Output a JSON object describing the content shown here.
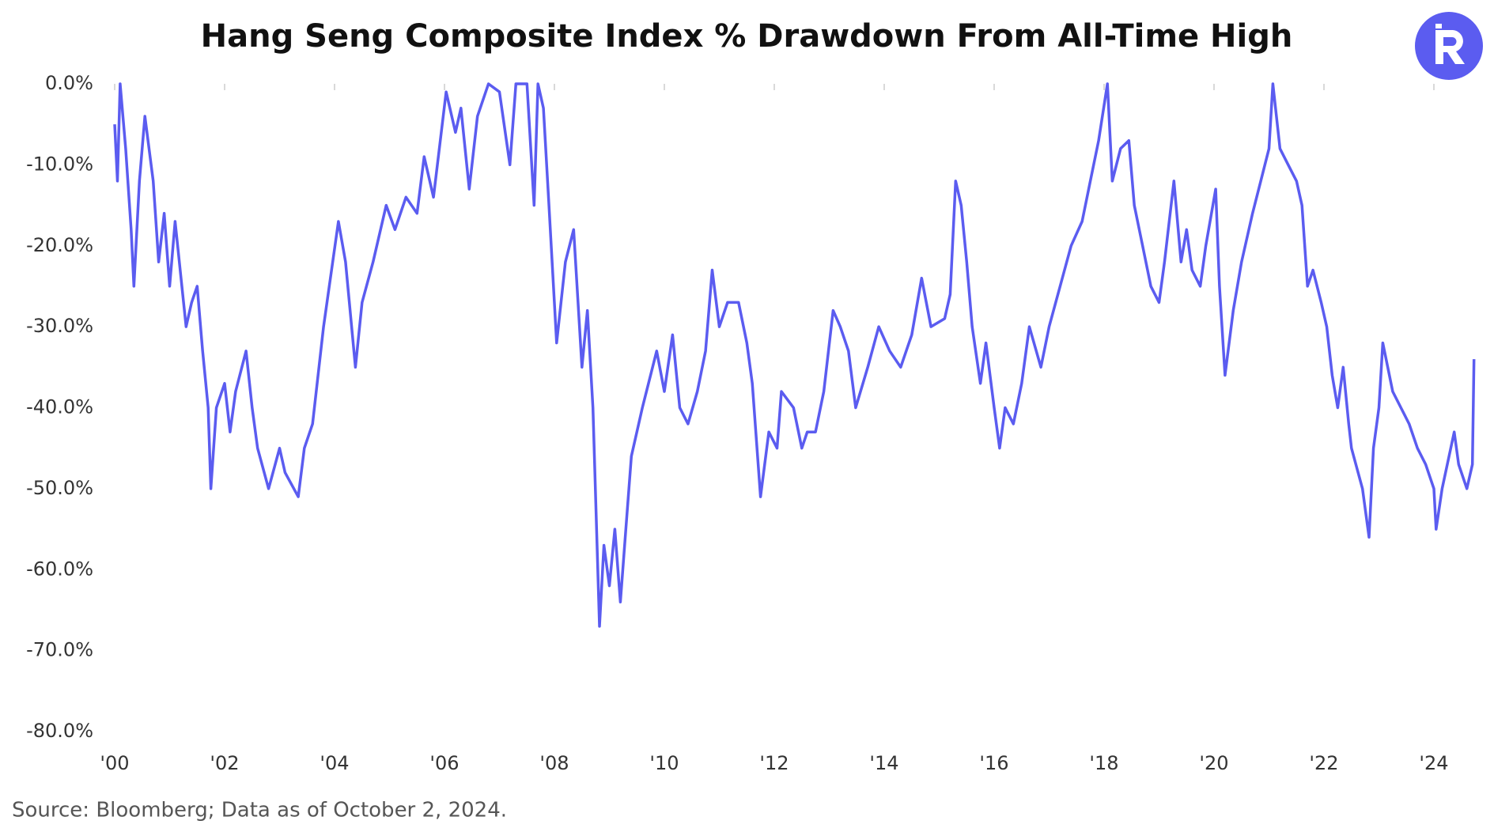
{
  "chart_data": {
    "type": "line",
    "title": "Hang Seng Composite Index % Drawdown From All-Time High",
    "source": "Source: Bloomberg; Data as of October 2, 2024.",
    "color": "#5b5cf0",
    "xlim": [
      2000,
      2024.8
    ],
    "ylim": [
      -80,
      0
    ],
    "xticks": [
      {
        "value": 2000,
        "label": "'00"
      },
      {
        "value": 2002,
        "label": "'02"
      },
      {
        "value": 2004,
        "label": "'04"
      },
      {
        "value": 2006,
        "label": "'06"
      },
      {
        "value": 2008,
        "label": "'08"
      },
      {
        "value": 2010,
        "label": "'10"
      },
      {
        "value": 2012,
        "label": "'12"
      },
      {
        "value": 2014,
        "label": "'14"
      },
      {
        "value": 2016,
        "label": "'16"
      },
      {
        "value": 2018,
        "label": "'18"
      },
      {
        "value": 2020,
        "label": "'20"
      },
      {
        "value": 2022,
        "label": "'22"
      },
      {
        "value": 2024,
        "label": "'24"
      }
    ],
    "yticks": [
      {
        "value": 0,
        "label": "0.0%"
      },
      {
        "value": -10,
        "label": "-10.0%"
      },
      {
        "value": -20,
        "label": "-20.0%"
      },
      {
        "value": -30,
        "label": "-30.0%"
      },
      {
        "value": -40,
        "label": "-40.0%"
      },
      {
        "value": -50,
        "label": "-50.0%"
      },
      {
        "value": -60,
        "label": "-60.0%"
      },
      {
        "value": -70,
        "label": "-70.0%"
      },
      {
        "value": -80,
        "label": "-80.0%"
      }
    ],
    "x": [
      2000.0,
      2000.05,
      2000.1,
      2000.2,
      2000.3,
      2000.35,
      2000.45,
      2000.55,
      2000.7,
      2000.8,
      2000.9,
      2001.0,
      2001.1,
      2001.3,
      2001.4,
      2001.5,
      2001.6,
      2001.7,
      2001.75,
      2001.85,
      2002.0,
      2002.1,
      2002.2,
      2002.39,
      2002.5,
      2002.6,
      2002.8,
      2003.0,
      2003.1,
      2003.34,
      2003.45,
      2003.6,
      2003.8,
      2004.07,
      2004.2,
      2004.38,
      2004.5,
      2004.7,
      2004.94,
      2005.1,
      2005.3,
      2005.5,
      2005.63,
      2005.8,
      2006.03,
      2006.2,
      2006.3,
      2006.45,
      2006.6,
      2006.8,
      2007.0,
      2007.19,
      2007.3,
      2007.5,
      2007.63,
      2007.7,
      2007.8,
      2007.9,
      2008.04,
      2008.2,
      2008.35,
      2008.5,
      2008.6,
      2008.7,
      2008.82,
      2008.9,
      2009.0,
      2009.1,
      2009.2,
      2009.3,
      2009.4,
      2009.6,
      2009.86,
      2010.0,
      2010.15,
      2010.28,
      2010.43,
      2010.6,
      2010.75,
      2010.87,
      2011.0,
      2011.15,
      2011.35,
      2011.5,
      2011.6,
      2011.75,
      2011.9,
      2012.05,
      2012.13,
      2012.35,
      2012.5,
      2012.6,
      2012.75,
      2012.9,
      2013.07,
      2013.2,
      2013.35,
      2013.48,
      2013.7,
      2013.9,
      2014.1,
      2014.3,
      2014.5,
      2014.68,
      2014.85,
      2015.1,
      2015.2,
      2015.3,
      2015.4,
      2015.5,
      2015.6,
      2015.75,
      2015.85,
      2016.0,
      2016.1,
      2016.2,
      2016.35,
      2016.5,
      2016.64,
      2016.85,
      2017.0,
      2017.2,
      2017.4,
      2017.6,
      2017.75,
      2017.9,
      2018.06,
      2018.15,
      2018.3,
      2018.45,
      2018.55,
      2018.7,
      2018.85,
      2019.0,
      2019.1,
      2019.27,
      2019.4,
      2019.5,
      2019.6,
      2019.75,
      2019.85,
      2020.03,
      2020.1,
      2020.2,
      2020.35,
      2020.5,
      2020.7,
      2020.85,
      2021.0,
      2021.07,
      2021.2,
      2021.35,
      2021.5,
      2021.6,
      2021.7,
      2021.8,
      2021.95,
      2022.05,
      2022.15,
      2022.25,
      2022.35,
      2022.45,
      2022.5,
      2022.7,
      2022.82,
      2022.9,
      2023.0,
      2023.07,
      2023.25,
      2023.4,
      2023.55,
      2023.7,
      2023.85,
      2024.0,
      2024.04,
      2024.15,
      2024.37,
      2024.45,
      2024.6,
      2024.7,
      2024.73
    ],
    "values": [
      -5,
      -12,
      0,
      -8,
      -18,
      -25,
      -12,
      -4,
      -12,
      -22,
      -16,
      -25,
      -17,
      -30,
      -27,
      -25,
      -33,
      -40,
      -50,
      -40,
      -37,
      -43,
      -38,
      -33,
      -40,
      -45,
      -50,
      -45,
      -48,
      -51,
      -45,
      -42,
      -30,
      -17,
      -22,
      -35,
      -27,
      -22,
      -15,
      -18,
      -14,
      -16,
      -9,
      -14,
      -1,
      -6,
      -3,
      -13,
      -4,
      0,
      -1,
      -10,
      0,
      0,
      -15,
      0,
      -3,
      -15,
      -32,
      -22,
      -18,
      -35,
      -28,
      -40,
      -67,
      -57,
      -62,
      -55,
      -64,
      -55,
      -46,
      -40,
      -33,
      -38,
      -31,
      -40,
      -42,
      -38,
      -33,
      -23,
      -30,
      -27,
      -27,
      -32,
      -37,
      -51,
      -43,
      -45,
      -38,
      -40,
      -45,
      -43,
      -43,
      -38,
      -28,
      -30,
      -33,
      -40,
      -35,
      -30,
      -33,
      -35,
      -31,
      -24,
      -30,
      -29,
      -26,
      -12,
      -15,
      -22,
      -30,
      -37,
      -32,
      -40,
      -45,
      -40,
      -42,
      -37,
      -30,
      -35,
      -30,
      -25,
      -20,
      -17,
      -12,
      -7,
      0,
      -12,
      -8,
      -7,
      -15,
      -20,
      -25,
      -27,
      -22,
      -12,
      -22,
      -18,
      -23,
      -25,
      -20,
      -13,
      -25,
      -36,
      -28,
      -22,
      -16,
      -12,
      -8,
      0,
      -8,
      -10,
      -12,
      -15,
      -25,
      -23,
      -27,
      -30,
      -36,
      -40,
      -35,
      -42,
      -45,
      -50,
      -56,
      -45,
      -40,
      -32,
      -38,
      -40,
      -42,
      -45,
      -47,
      -50,
      -55,
      -50,
      -43,
      -47,
      -50,
      -47,
      -34
    ]
  }
}
